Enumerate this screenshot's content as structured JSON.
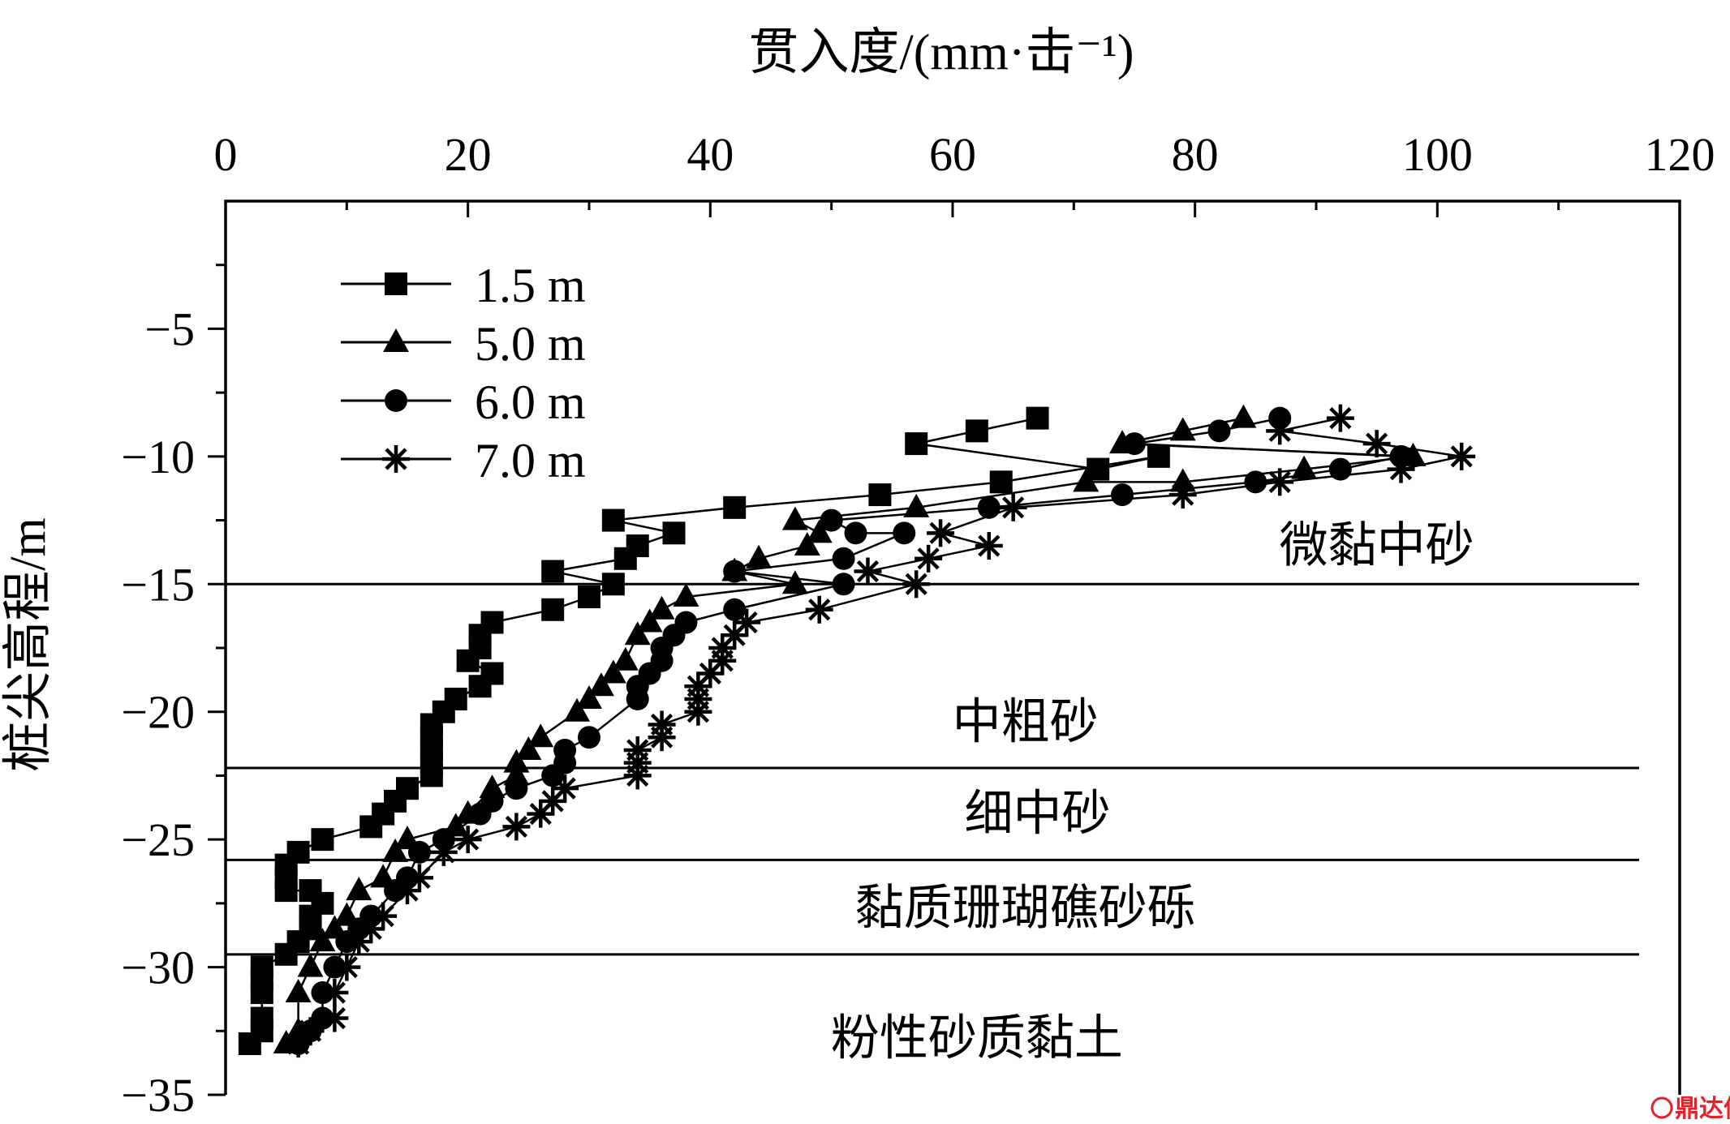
{
  "chart_data": {
    "type": "line",
    "xlabel": "贯入度/(mm·击⁻¹)",
    "ylabel": "桩尖高程/m",
    "xlim": [
      0,
      120
    ],
    "ylim": [
      -35,
      0
    ],
    "x_ticks": [
      0,
      20,
      40,
      60,
      80,
      100,
      120
    ],
    "y_ticks": [
      -5,
      -10,
      -15,
      -20,
      -25,
      -30,
      -35
    ],
    "x_tick_labels": [
      "0",
      "20",
      "40",
      "60",
      "80",
      "100",
      "120"
    ],
    "y_tick_labels": [
      "−5",
      "−10",
      "−15",
      "−20",
      "−25",
      "−30",
      "−35"
    ],
    "x_axis_position": "top",
    "grid": false,
    "legend_position": "top-left",
    "series": [
      {
        "name": "1.5 m",
        "marker": "square",
        "points": [
          [
            67,
            -8.5
          ],
          [
            62,
            -9
          ],
          [
            57,
            -9.5
          ],
          [
            72,
            -10.5
          ],
          [
            77,
            -10
          ],
          [
            64,
            -11
          ],
          [
            54,
            -11.5
          ],
          [
            42,
            -12
          ],
          [
            32,
            -12.5
          ],
          [
            37,
            -13
          ],
          [
            34,
            -13.5
          ],
          [
            33,
            -14
          ],
          [
            27,
            -14.5
          ],
          [
            32,
            -15
          ],
          [
            30,
            -15.5
          ],
          [
            27,
            -16
          ],
          [
            22,
            -16.5
          ],
          [
            21,
            -17
          ],
          [
            21,
            -17.5
          ],
          [
            20,
            -18
          ],
          [
            22,
            -18.5
          ],
          [
            21,
            -19
          ],
          [
            19,
            -19.5
          ],
          [
            18,
            -20
          ],
          [
            17,
            -20.5
          ],
          [
            17,
            -21
          ],
          [
            17,
            -21.5
          ],
          [
            17,
            -22
          ],
          [
            17,
            -22.5
          ],
          [
            15,
            -23
          ],
          [
            14,
            -23.5
          ],
          [
            13,
            -24
          ],
          [
            12,
            -24.5
          ],
          [
            8,
            -25
          ],
          [
            6,
            -25.5
          ],
          [
            5,
            -26
          ],
          [
            5,
            -26.5
          ],
          [
            5,
            -27
          ],
          [
            7,
            -27
          ],
          [
            8,
            -27.5
          ],
          [
            7,
            -28
          ],
          [
            7,
            -28.5
          ],
          [
            6,
            -29
          ],
          [
            5,
            -29.5
          ],
          [
            3,
            -30
          ],
          [
            3,
            -30.5
          ],
          [
            3,
            -31
          ],
          [
            3,
            -32
          ],
          [
            3,
            -32.5
          ],
          [
            2,
            -33
          ]
        ]
      },
      {
        "name": "5.0 m",
        "marker": "triangle",
        "points": [
          [
            84,
            -8.5
          ],
          [
            79,
            -9
          ],
          [
            74,
            -9.5
          ],
          [
            98,
            -10
          ],
          [
            89,
            -10.5
          ],
          [
            79,
            -11
          ],
          [
            71,
            -11
          ],
          [
            57,
            -12
          ],
          [
            47,
            -12.5
          ],
          [
            49,
            -13
          ],
          [
            48,
            -13.5
          ],
          [
            44,
            -14
          ],
          [
            42,
            -14.5
          ],
          [
            47,
            -15
          ],
          [
            38,
            -15.5
          ],
          [
            36,
            -16
          ],
          [
            35,
            -16.5
          ],
          [
            34,
            -17
          ],
          [
            33,
            -18
          ],
          [
            32,
            -18.5
          ],
          [
            31,
            -19
          ],
          [
            30,
            -19.5
          ],
          [
            29,
            -20
          ],
          [
            26,
            -21
          ],
          [
            25,
            -21.5
          ],
          [
            24,
            -22
          ],
          [
            24,
            -22.5
          ],
          [
            22,
            -23
          ],
          [
            20,
            -24
          ],
          [
            19,
            -24.5
          ],
          [
            15,
            -25
          ],
          [
            14,
            -25.5
          ],
          [
            13,
            -26.5
          ],
          [
            11,
            -27
          ],
          [
            10,
            -28
          ],
          [
            9,
            -28.5
          ],
          [
            8,
            -29
          ],
          [
            7,
            -30
          ],
          [
            6,
            -31
          ],
          [
            6,
            -32.5
          ],
          [
            5,
            -33
          ]
        ]
      },
      {
        "name": "6.0 m",
        "marker": "circle",
        "points": [
          [
            87,
            -8.5
          ],
          [
            82,
            -9
          ],
          [
            75,
            -9.5
          ],
          [
            97,
            -10
          ],
          [
            92,
            -10.5
          ],
          [
            85,
            -11
          ],
          [
            74,
            -11.5
          ],
          [
            63,
            -12
          ],
          [
            50,
            -12.5
          ],
          [
            52,
            -13
          ],
          [
            56,
            -13
          ],
          [
            51,
            -14
          ],
          [
            42,
            -14.5
          ],
          [
            51,
            -15
          ],
          [
            42,
            -16
          ],
          [
            38,
            -16.5
          ],
          [
            37,
            -17
          ],
          [
            36,
            -17.5
          ],
          [
            36,
            -18
          ],
          [
            35,
            -18.5
          ],
          [
            34,
            -19
          ],
          [
            34,
            -19.5
          ],
          [
            30,
            -21
          ],
          [
            28,
            -21.5
          ],
          [
            28,
            -22
          ],
          [
            27,
            -22.5
          ],
          [
            24,
            -23
          ],
          [
            22,
            -23.5
          ],
          [
            21,
            -24
          ],
          [
            18,
            -25
          ],
          [
            16,
            -25.5
          ],
          [
            15,
            -26.5
          ],
          [
            14,
            -27
          ],
          [
            12,
            -28
          ],
          [
            11,
            -28.5
          ],
          [
            10,
            -29
          ],
          [
            9,
            -30
          ],
          [
            8,
            -31
          ],
          [
            8,
            -32
          ],
          [
            7,
            -32.5
          ],
          [
            6,
            -33
          ]
        ]
      },
      {
        "name": "7.0 m",
        "marker": "asterisk",
        "points": [
          [
            92,
            -8.5
          ],
          [
            87,
            -9
          ],
          [
            95,
            -9.5
          ],
          [
            102,
            -10
          ],
          [
            97,
            -10.5
          ],
          [
            87,
            -11
          ],
          [
            79,
            -11.5
          ],
          [
            65,
            -12
          ],
          [
            59,
            -13
          ],
          [
            63,
            -13.5
          ],
          [
            58,
            -14
          ],
          [
            53,
            -14.5
          ],
          [
            57,
            -15
          ],
          [
            49,
            -16
          ],
          [
            43,
            -16.5
          ],
          [
            42,
            -17
          ],
          [
            41,
            -17.5
          ],
          [
            41,
            -18
          ],
          [
            40,
            -18.5
          ],
          [
            39,
            -19
          ],
          [
            39,
            -19.5
          ],
          [
            39,
            -20
          ],
          [
            36,
            -20.5
          ],
          [
            36,
            -21
          ],
          [
            34,
            -21.5
          ],
          [
            34,
            -22
          ],
          [
            34,
            -22.5
          ],
          [
            28,
            -23
          ],
          [
            27,
            -23.5
          ],
          [
            26,
            -24
          ],
          [
            24,
            -24.5
          ],
          [
            20,
            -25
          ],
          [
            18,
            -25.5
          ],
          [
            16,
            -26.5
          ],
          [
            15,
            -27
          ],
          [
            13,
            -28
          ],
          [
            12,
            -28.5
          ],
          [
            11,
            -29
          ],
          [
            10,
            -30
          ],
          [
            9,
            -31
          ],
          [
            9,
            -32
          ],
          [
            7,
            -32.5
          ],
          [
            6,
            -33
          ]
        ]
      }
    ],
    "layers": {
      "boundaries": [
        -15,
        -22.2,
        -25.8,
        -29.5
      ],
      "labels": [
        {
          "text": "微黏中砂",
          "x": 95,
          "y": -13.5
        },
        {
          "text": "中粗砂",
          "x": 66,
          "y": -20.4
        },
        {
          "text": "细中砂",
          "x": 67,
          "y": -24
        },
        {
          "text": "黏质珊瑚礁砂砾",
          "x": 66,
          "y": -27.7
        },
        {
          "text": "粉性砂质黏土",
          "x": 62,
          "y": -32.8
        }
      ]
    }
  },
  "watermark": {
    "text": "鼎达信",
    "icon": "rtc-logo-icon"
  }
}
